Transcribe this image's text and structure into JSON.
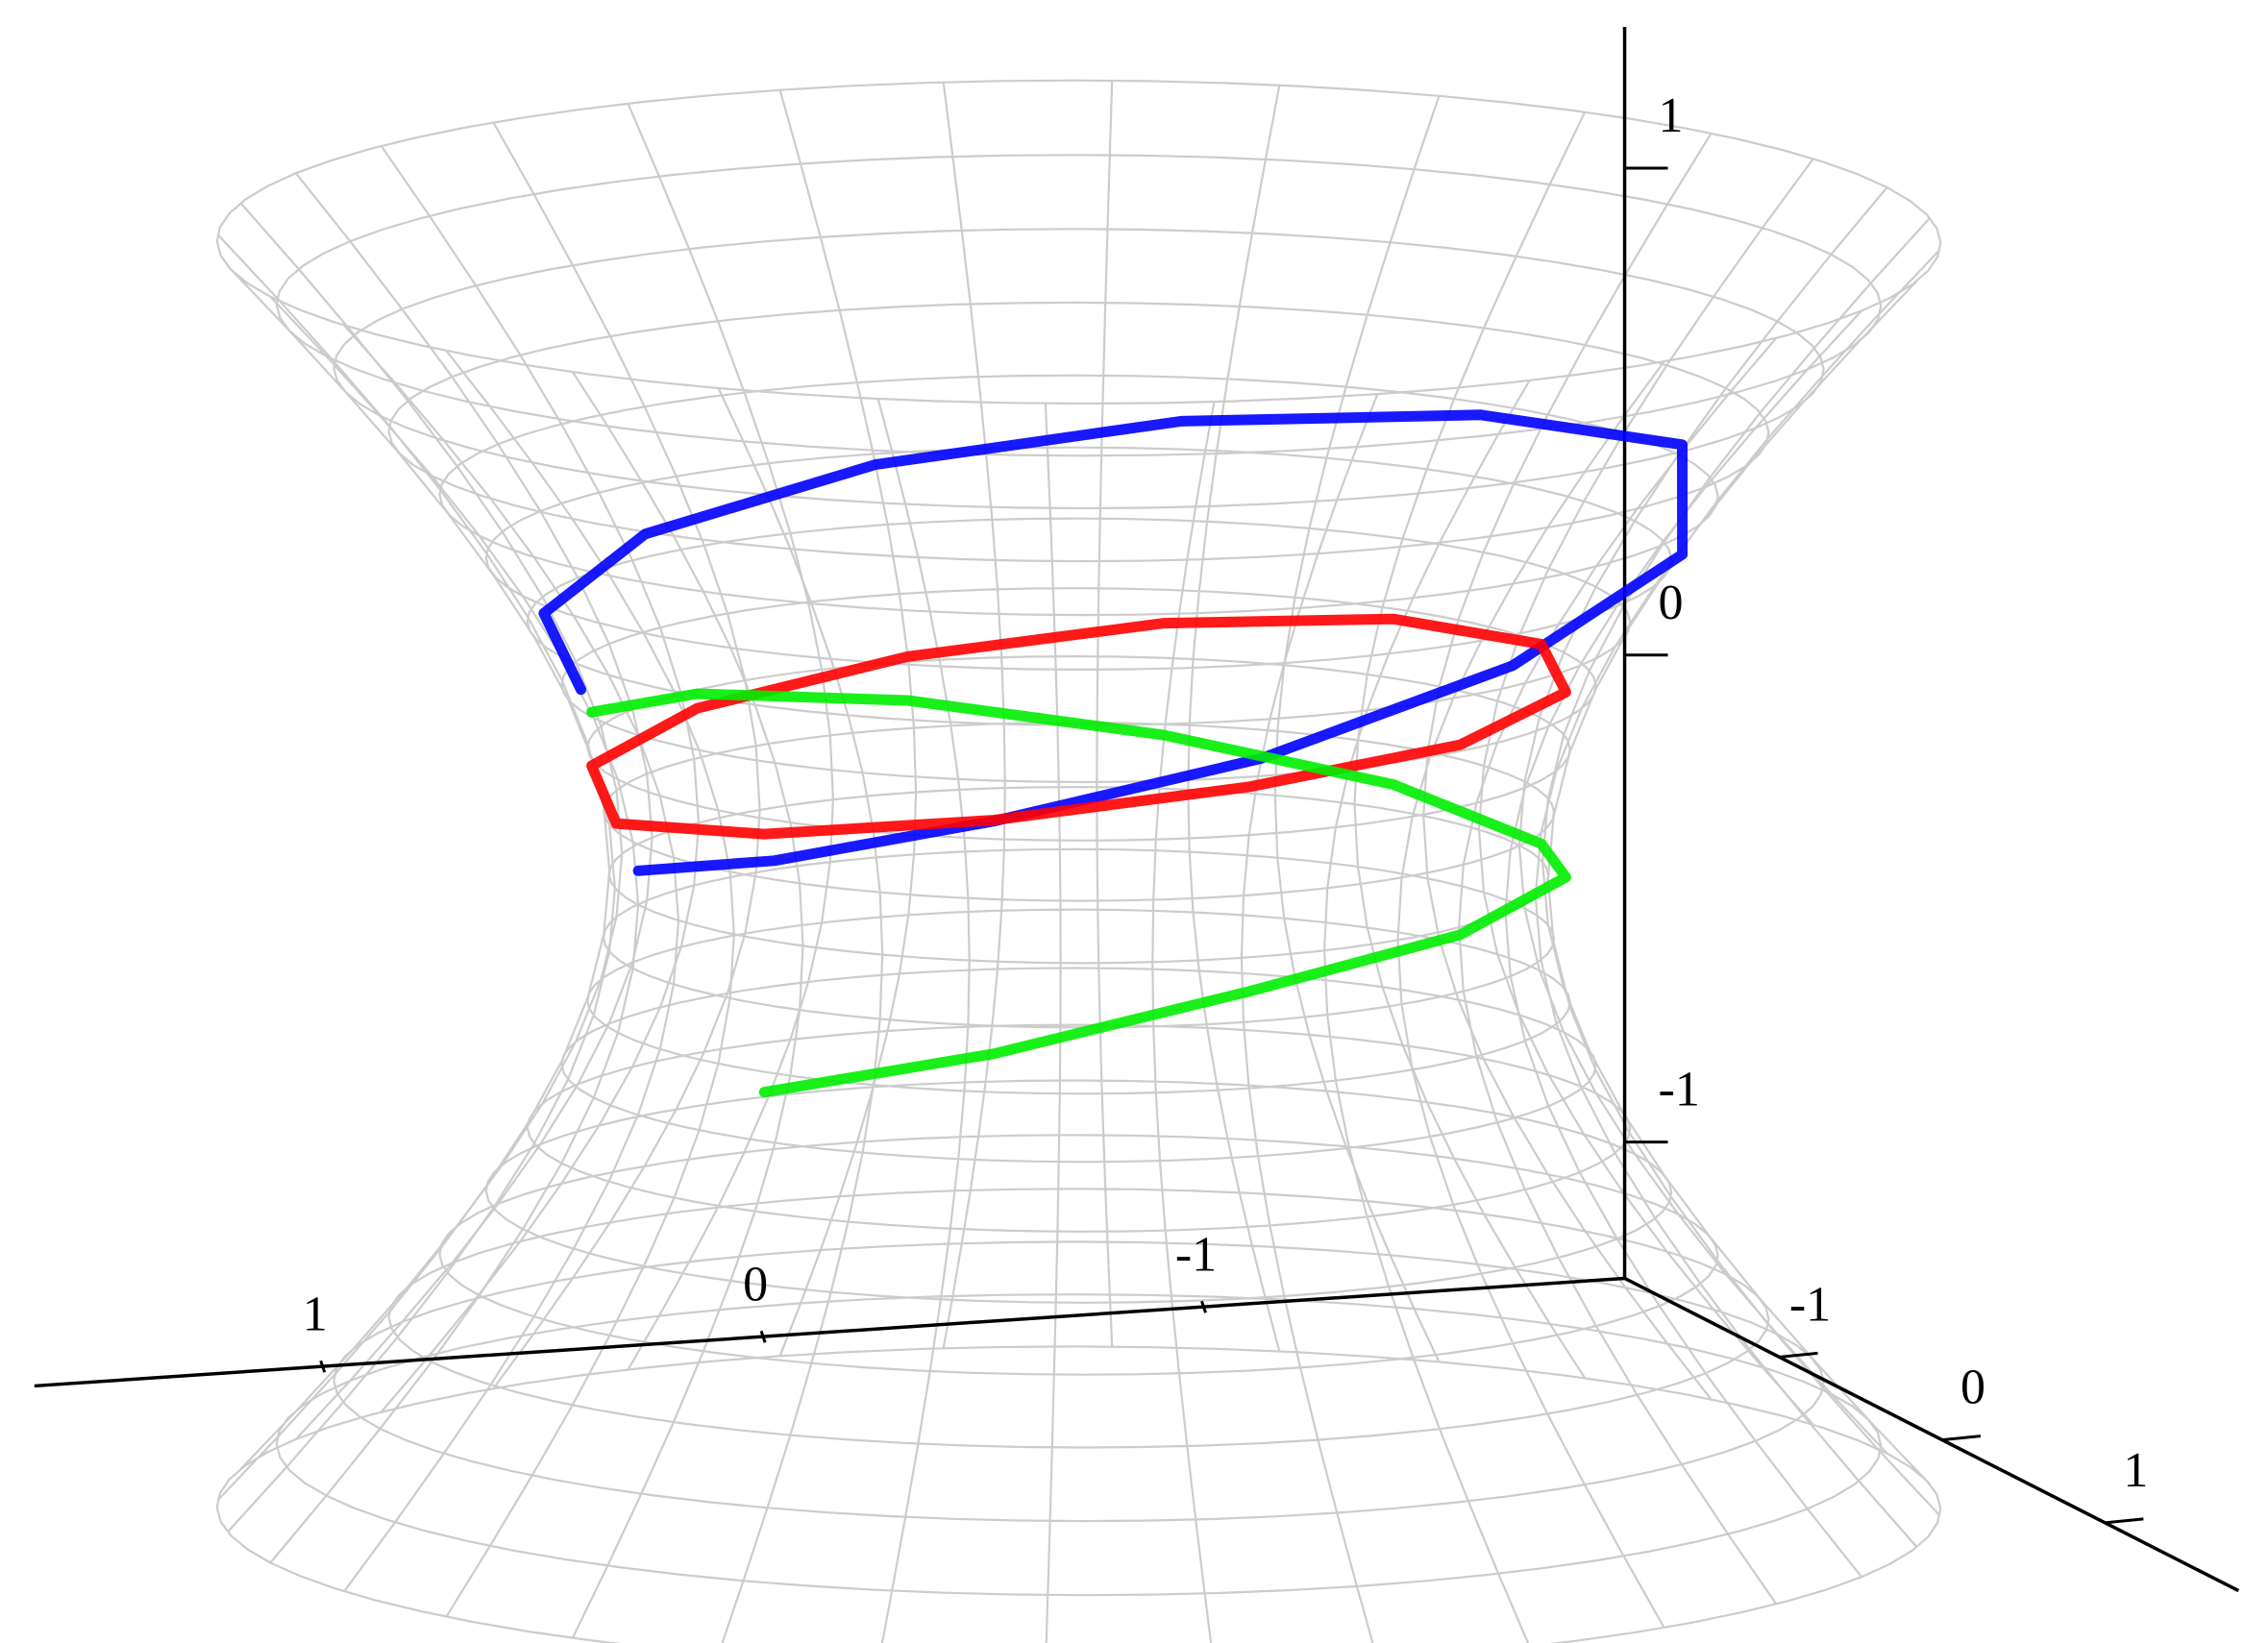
{
  "chart_data": {
    "type": "surface3d",
    "xlim": [
      -1.96,
      1.65
    ],
    "ylim": [
      -1.95,
      1.82
    ],
    "zlim": [
      -1.28,
      1.29
    ],
    "xticks": [
      1,
      0,
      -1
    ],
    "yticks": [
      -1,
      0,
      1
    ],
    "zticks": [
      1,
      0,
      -1
    ],
    "surface": {
      "color": "#cccccc",
      "z": [
        -1.3,
        -1.17,
        -1.04,
        -0.91,
        -0.78,
        -0.65,
        -0.52,
        -0.39,
        -0.26,
        -0.13,
        0,
        0.13,
        0.26,
        0.39,
        0.52,
        0.65,
        0.78,
        0.91,
        1.04,
        1.17,
        1.3
      ],
      "r": [
        1.835,
        1.708,
        1.586,
        1.469,
        1.361,
        1.262,
        1.174,
        1.101,
        1.046,
        1.012,
        1,
        1.012,
        1.046,
        1.101,
        1.174,
        1.262,
        1.361,
        1.469,
        1.586,
        1.708,
        1.835
      ]
    },
    "series": [
      {
        "color": "#0000ff",
        "x": [
          1.0,
          0.88,
          0.53,
          0,
          -0.6,
          -1.13,
          -1.37,
          -1.16,
          -0.65,
          0,
          0.6,
          1.0,
          1.13
        ],
        "y": [
          0,
          0.51,
          0.92,
          1.12,
          1.04,
          0.65,
          0,
          -0.67,
          -1.13,
          -1.25,
          -1.04,
          -0.58,
          0
        ],
        "z": [
          0.07,
          0.17,
          0.3,
          0.43,
          0.57,
          0.7,
          0.8,
          0.76,
          0.7,
          0.63,
          0.56,
          0.5,
          0.45
        ]
      },
      {
        "color": "#ff0000",
        "x": [
          1.05,
          0.91,
          0.53,
          0,
          -0.53,
          -0.91,
          -1.05,
          -0.91,
          -0.53,
          0,
          0.53,
          0.91,
          1.05
        ],
        "y": [
          0,
          0.53,
          0.91,
          1.05,
          0.91,
          0.53,
          0,
          -0.53,
          -0.91,
          -1.05,
          -0.91,
          -0.53,
          0
        ],
        "z": [
          0.17,
          0.23,
          0.3,
          0.36,
          0.39,
          0.41,
          0.41,
          0.38,
          0.33,
          0.27,
          0.22,
          0.19,
          0.17
        ]
      },
      {
        "color": "#00ee00",
        "x": [
          0.91,
          0.53,
          0,
          -0.53,
          -0.91,
          -1.05,
          -0.91,
          -0.53,
          0,
          0.53,
          0.91
        ],
        "y": [
          -0.53,
          -0.91,
          -1.05,
          -0.91,
          -0.53,
          0,
          0.53,
          0.91,
          1.05,
          0.91,
          0.53
        ],
        "z": [
          0.3,
          0.25,
          0.18,
          0.1,
          0.04,
          0.0,
          0.03,
          0.0,
          -0.06,
          -0.18,
          -0.3
        ]
      }
    ]
  }
}
